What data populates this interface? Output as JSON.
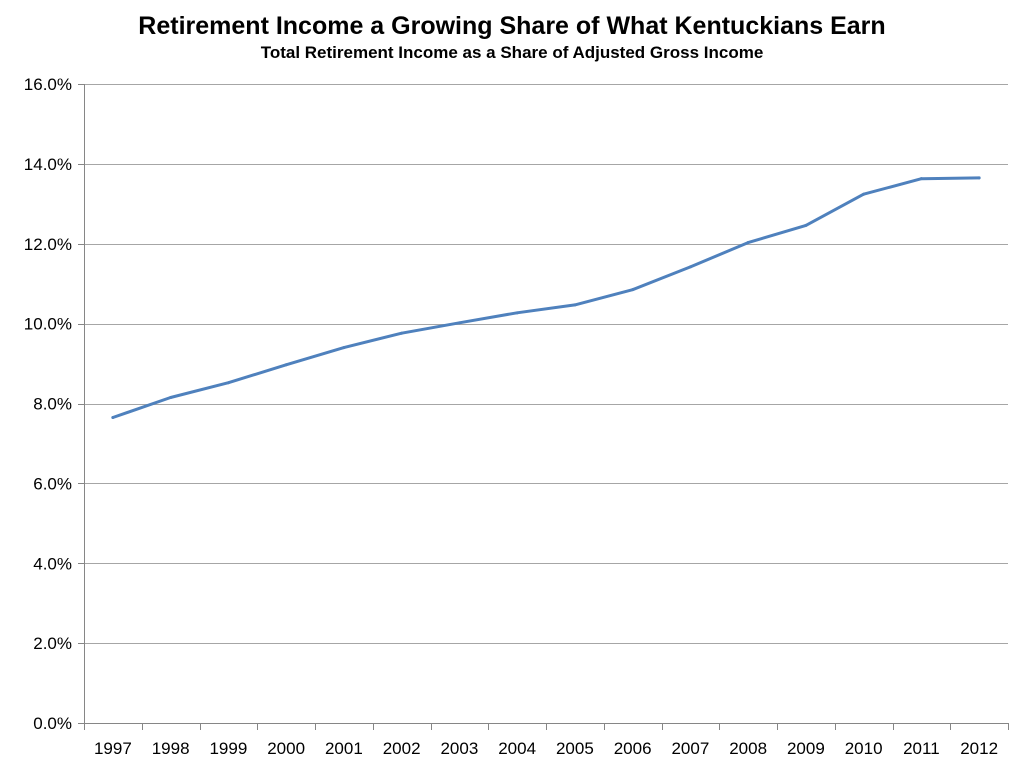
{
  "chart_data": {
    "type": "line",
    "title": "Retirement Income a Growing Share of What Kentuckians Earn",
    "subtitle": "Total Retirement Income as a Share of Adjusted Gross Income",
    "xlabel": "",
    "ylabel": "",
    "ylim": [
      0,
      16
    ],
    "y_tick_values": [
      0,
      2,
      4,
      6,
      8,
      10,
      12,
      14,
      16
    ],
    "y_tick_labels": [
      "0.0%",
      "2.0%",
      "4.0%",
      "6.0%",
      "8.0%",
      "10.0%",
      "12.0%",
      "14.0%",
      "16.0%"
    ],
    "categories": [
      "1997",
      "1998",
      "1999",
      "2000",
      "2001",
      "2002",
      "2003",
      "2004",
      "2005",
      "2006",
      "2007",
      "2008",
      "2009",
      "2010",
      "2011",
      "2012"
    ],
    "grid": true,
    "legend": "none",
    "series": [
      {
        "color": "#4f81bd",
        "values": [
          7.65,
          8.15,
          8.52,
          8.97,
          9.4,
          9.76,
          10.02,
          10.27,
          10.47,
          10.85,
          11.42,
          12.03,
          12.46,
          13.24,
          13.63,
          13.65
        ]
      }
    ]
  }
}
